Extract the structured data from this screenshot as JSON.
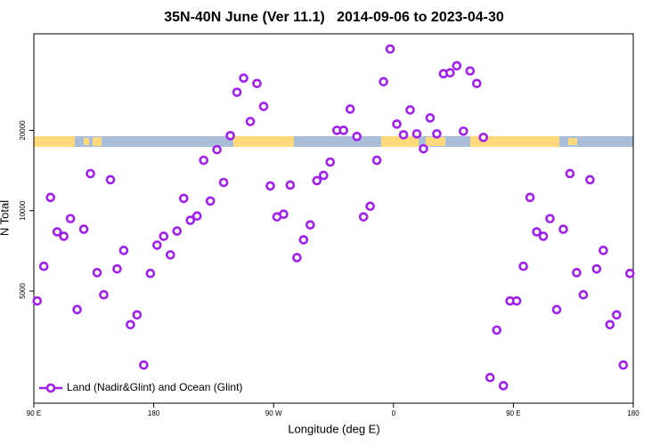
{
  "chart_data": {
    "type": "scatter",
    "title": "35N-40N June (Ver 11.1)   2014-09-06 to 2023-04-30",
    "x_label": "Longitude (deg E)",
    "y_label": "N Total",
    "xlim": [
      90,
      540
    ],
    "xticks": [
      {
        "value": 90,
        "label": "90 E"
      },
      180,
      {
        "value": 270,
        "label": "90 W"
      },
      {
        "value": 360,
        "label": "0"
      },
      {
        "value": 450,
        "label": "90 E"
      },
      {
        "value": 540,
        "label": "180"
      }
    ],
    "ylim": [
      1900,
      46000
    ],
    "log_y": true,
    "yticks": [
      5000,
      10000,
      20000
    ],
    "legend": "bottom-left",
    "series": [
      {
        "name": "Land (Nadir&Glint) and Ocean (Glint)",
        "color": "#a020f0",
        "x": [
          92.5,
          97.5,
          102.5,
          107.5,
          112.5,
          117.5,
          122.5,
          127.5,
          132.5,
          137.5,
          142.5,
          147.5,
          152.5,
          157.5,
          162.5,
          167.5,
          172.5,
          177.5,
          182.5,
          187.5,
          192.5,
          197.5,
          202.5,
          207.5,
          212.5,
          217.5,
          222.5,
          227.5,
          232.5,
          237.5,
          242.5,
          247.5,
          252.5,
          257.5,
          262.5,
          267.5,
          272.5,
          277.5,
          282.5,
          287.5,
          292.5,
          297.5,
          302.5,
          307.5,
          312.5,
          317.5,
          322.5,
          327.5,
          332.5,
          337.5,
          342.5,
          347.5,
          352.5,
          357.5,
          362.5,
          367.5,
          372.5,
          377.5,
          382.5,
          387.5,
          392.5,
          397.5,
          402.5,
          407.5,
          412.5,
          417.5,
          422.5,
          427.5,
          432.5,
          437.5,
          442.5,
          447.5,
          452.5,
          457.5,
          462.5,
          467.5,
          472.5,
          477.5,
          482.5,
          487.5,
          492.5,
          497.5,
          502.5,
          507.5,
          512.5,
          517.5,
          522.5,
          527.5,
          532.5,
          537.5
        ],
        "values": [
          4590,
          6190,
          11210,
          8330,
          8020,
          9340,
          4260,
          8520,
          13770,
          5860,
          4840,
          13060,
          6050,
          7100,
          3740,
          4070,
          2640,
          5820,
          7430,
          8020,
          6830,
          8390,
          11120,
          9200,
          9550,
          15450,
          10870,
          16930,
          12760,
          19110,
          27780,
          31390,
          21590,
          29970,
          24590,
          12380,
          9480,
          9700,
          12470,
          6670,
          7780,
          8850,
          12960,
          13560,
          15210,
          20000,
          20000,
          24030,
          18970,
          9480,
          10390,
          15450,
          30430,
          40360,
          21110,
          19260,
          23850,
          19410,
          17060,
          22270,
          19410,
          32600,
          32860,
          34910,
          19860,
          33380,
          29970,
          18820,
          2370,
          3570,
          2210,
          4590,
          4590,
          6190,
          11210,
          8330,
          8020,
          9340,
          4260,
          8520,
          13770,
          5860,
          4840,
          13060,
          6050,
          7100,
          3740,
          4070,
          2640,
          5820
        ]
      }
    ]
  }
}
